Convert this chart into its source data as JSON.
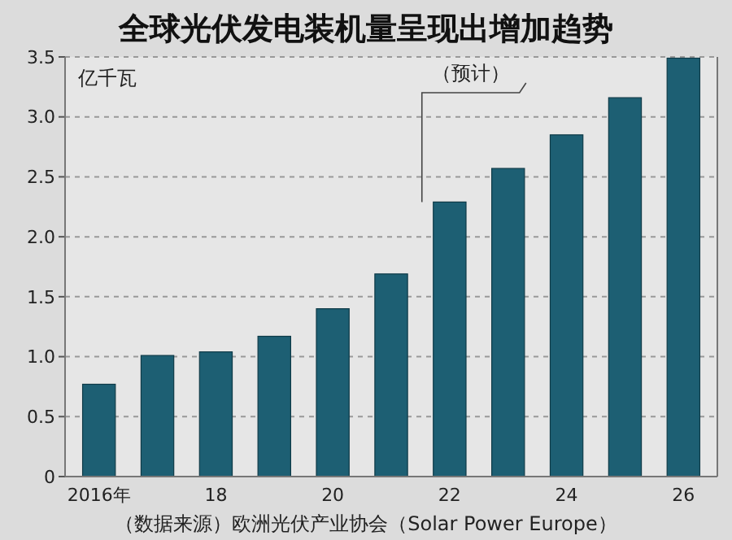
{
  "chart_data": {
    "type": "bar",
    "title": "全球光伏发电装机量呈现出增加趋势",
    "ylabel": "亿千瓦",
    "categories": [
      "2016年",
      null,
      "18",
      null,
      "20",
      null,
      "22",
      null,
      "24",
      null,
      "26"
    ],
    "values": [
      0.77,
      1.01,
      1.04,
      1.17,
      1.4,
      1.69,
      2.29,
      2.57,
      2.85,
      3.16,
      3.49
    ],
    "color": "#1d5f73",
    "ylim": [
      0,
      3.5
    ],
    "yticks": [
      0,
      {
        "value": 0.5,
        "label": "0.5"
      },
      {
        "value": 1,
        "label": "1.0"
      },
      {
        "value": 1.5,
        "label": "1.5"
      },
      {
        "value": 2,
        "label": "2.0"
      },
      {
        "value": 2.5,
        "label": "2.5"
      },
      {
        "value": 3,
        "label": "3.0"
      },
      {
        "value": 3.5,
        "label": "3.5"
      }
    ],
    "grid": "y",
    "annotations": [
      "（预计）",
      "（数据来源）欧洲光伏产业协会（Solar Power Europe）"
    ]
  }
}
